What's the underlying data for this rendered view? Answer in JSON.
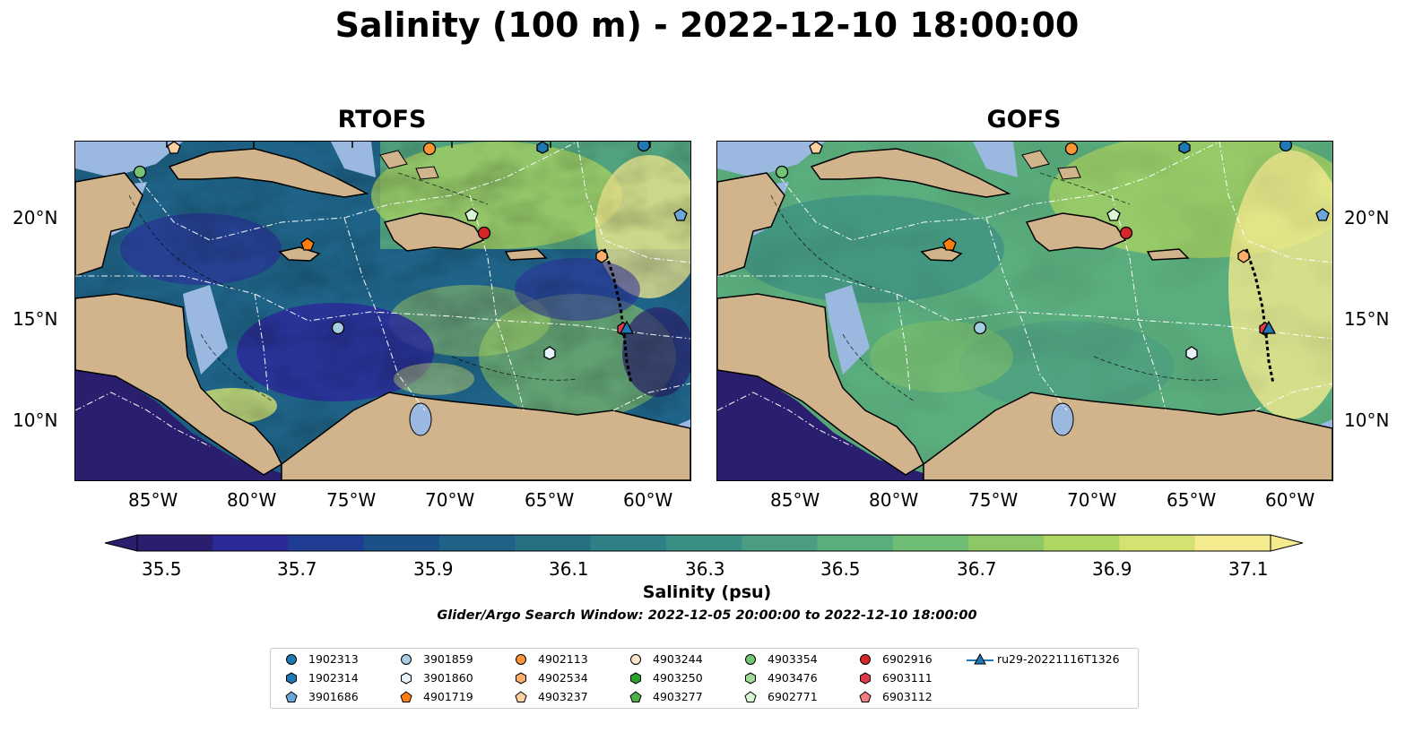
{
  "title": "Salinity (100 m) - 2022-12-10 18:00:00",
  "panels": [
    {
      "title": "RTOFS"
    },
    {
      "title": "GOFS"
    }
  ],
  "axes": {
    "lon_labels": [
      "85°W",
      "80°W",
      "75°W",
      "70°W",
      "65°W",
      "60°W"
    ],
    "lat_labels": [
      "20°N",
      "15°N",
      "10°N"
    ]
  },
  "colorbar": {
    "ticks": [
      "35.5",
      "35.7",
      "35.9",
      "36.1",
      "36.3",
      "36.5",
      "36.7",
      "36.9",
      "37.1"
    ],
    "colors": [
      "#2a1f6e",
      "#2b2a9a",
      "#1f3d93",
      "#1b5188",
      "#1e6288",
      "#267084",
      "#2e7f86",
      "#3a8f85",
      "#4a9d82",
      "#5aad7d",
      "#6fbc74",
      "#8dc866",
      "#afd660",
      "#d5e271",
      "#f4ea8e"
    ],
    "label": "Salinity (psu)",
    "note": "Glider/Argo Search Window: 2022-12-05 20:00:00 to 2022-12-10 18:00:00"
  },
  "map_colors": {
    "land": "#d2b48c",
    "shelf": "#9ab8e0",
    "pacific": "#2a1f6e"
  },
  "legend": [
    {
      "label": "1902313",
      "marker": "circle",
      "color": "#1f77b4"
    },
    {
      "label": "1902314",
      "marker": "hexagon",
      "color": "#1f77b4"
    },
    {
      "label": "3901686",
      "marker": "pentagon",
      "color": "#6aa6dc"
    },
    {
      "label": "3901859",
      "marker": "circle",
      "color": "#a6cee3"
    },
    {
      "label": "3901860",
      "marker": "hexagon",
      "color": "#e6f3fb"
    },
    {
      "label": "4901719",
      "marker": "pentagon",
      "color": "#ff7f0e"
    },
    {
      "label": "4902113",
      "marker": "circle",
      "color": "#fd9536"
    },
    {
      "label": "4902534",
      "marker": "hexagon",
      "color": "#fdae6b"
    },
    {
      "label": "4903237",
      "marker": "pentagon",
      "color": "#fdd0a2"
    },
    {
      "label": "4903244",
      "marker": "circle",
      "color": "#fde5cc"
    },
    {
      "label": "4903250",
      "marker": "hexagon",
      "color": "#2ca02c"
    },
    {
      "label": "4903277",
      "marker": "pentagon",
      "color": "#4daf4a"
    },
    {
      "label": "4903354",
      "marker": "circle",
      "color": "#74c476"
    },
    {
      "label": "4903476",
      "marker": "hexagon",
      "color": "#a1d99b"
    },
    {
      "label": "6902771",
      "marker": "pentagon",
      "color": "#d9f5d3"
    },
    {
      "label": "6902916",
      "marker": "circle",
      "color": "#d62728"
    },
    {
      "label": "6903111",
      "marker": "hexagon",
      "color": "#e0394a"
    },
    {
      "label": "6903112",
      "marker": "pentagon",
      "color": "#f08080"
    },
    {
      "label": "ru29-20221116T1326",
      "marker": "triangle-line",
      "color": "#1f77b4"
    }
  ]
}
